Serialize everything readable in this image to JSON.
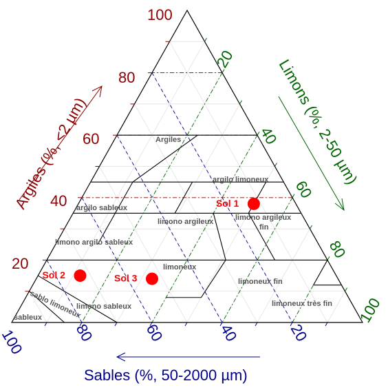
{
  "axes": {
    "clay": {
      "title": "Argiles (%, <2 µm)",
      "ticks": [
        "20",
        "40",
        "60",
        "80",
        "100"
      ]
    },
    "silt": {
      "title": "Limons (%, 2-50 µm)",
      "ticks": [
        "20",
        "40",
        "60",
        "80",
        "100"
      ]
    },
    "sand": {
      "title": "Sables (%, 50-2000 µm)",
      "ticks": [
        "20",
        "40",
        "60",
        "80",
        "100"
      ]
    }
  },
  "regions": [
    "Argiles",
    "argilo limoneux",
    "argilo sableux",
    "limono argileux",
    "limono argileux fin",
    "limono argilo sableux",
    "limoneux",
    "limoneux fin",
    "sablo limoneux",
    "limono sableux",
    "sableux",
    "limoneux très fin"
  ],
  "chart_data": {
    "type": "scatter",
    "subtype": "ternary",
    "series": [
      {
        "name": "Sol 1",
        "sand": 12,
        "silt": 50,
        "clay": 38
      },
      {
        "name": "Sol 2",
        "sand": 73,
        "silt": 12,
        "clay": 15
      },
      {
        "name": "Sol 3",
        "sand": 53,
        "silt": 33,
        "clay": 14
      }
    ],
    "axis_range": [
      0,
      100
    ],
    "grid": true,
    "colors": {
      "clay": "#8b0000",
      "silt": "#006400",
      "sand": "#00008b",
      "points": "#ff0000"
    }
  }
}
